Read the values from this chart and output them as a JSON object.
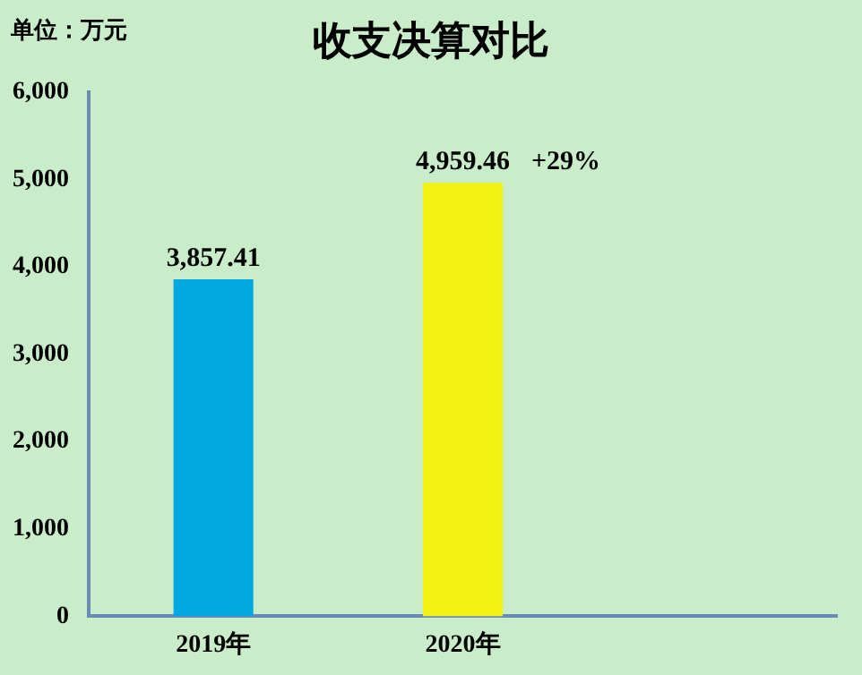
{
  "chart_data": {
    "type": "bar",
    "title": "收支决算对比",
    "categories": [
      "2019年",
      "2020年",
      null
    ],
    "values": [
      3857.41,
      4959.46,
      null
    ],
    "colors": [
      "#00a8e0",
      "#f2f213",
      null
    ],
    "value_labels": [
      "3,857.41",
      "4,959.46",
      null
    ],
    "ylim": [
      0,
      6000
    ],
    "yticks": [
      0,
      {
        "value": 1000,
        "label": "1,000"
      },
      {
        "value": 2000,
        "label": "2,000"
      },
      {
        "value": 3000,
        "label": "3,000"
      },
      {
        "value": 4000,
        "label": "4,000"
      },
      {
        "value": 5000,
        "label": "5,000"
      },
      {
        "value": 6000,
        "label": "6,000"
      }
    ],
    "grid": false,
    "legend": false,
    "annotations": [
      "单位：万元",
      {
        "text": "+29%",
        "x": "2020年",
        "y": 4959.46
      }
    ]
  }
}
